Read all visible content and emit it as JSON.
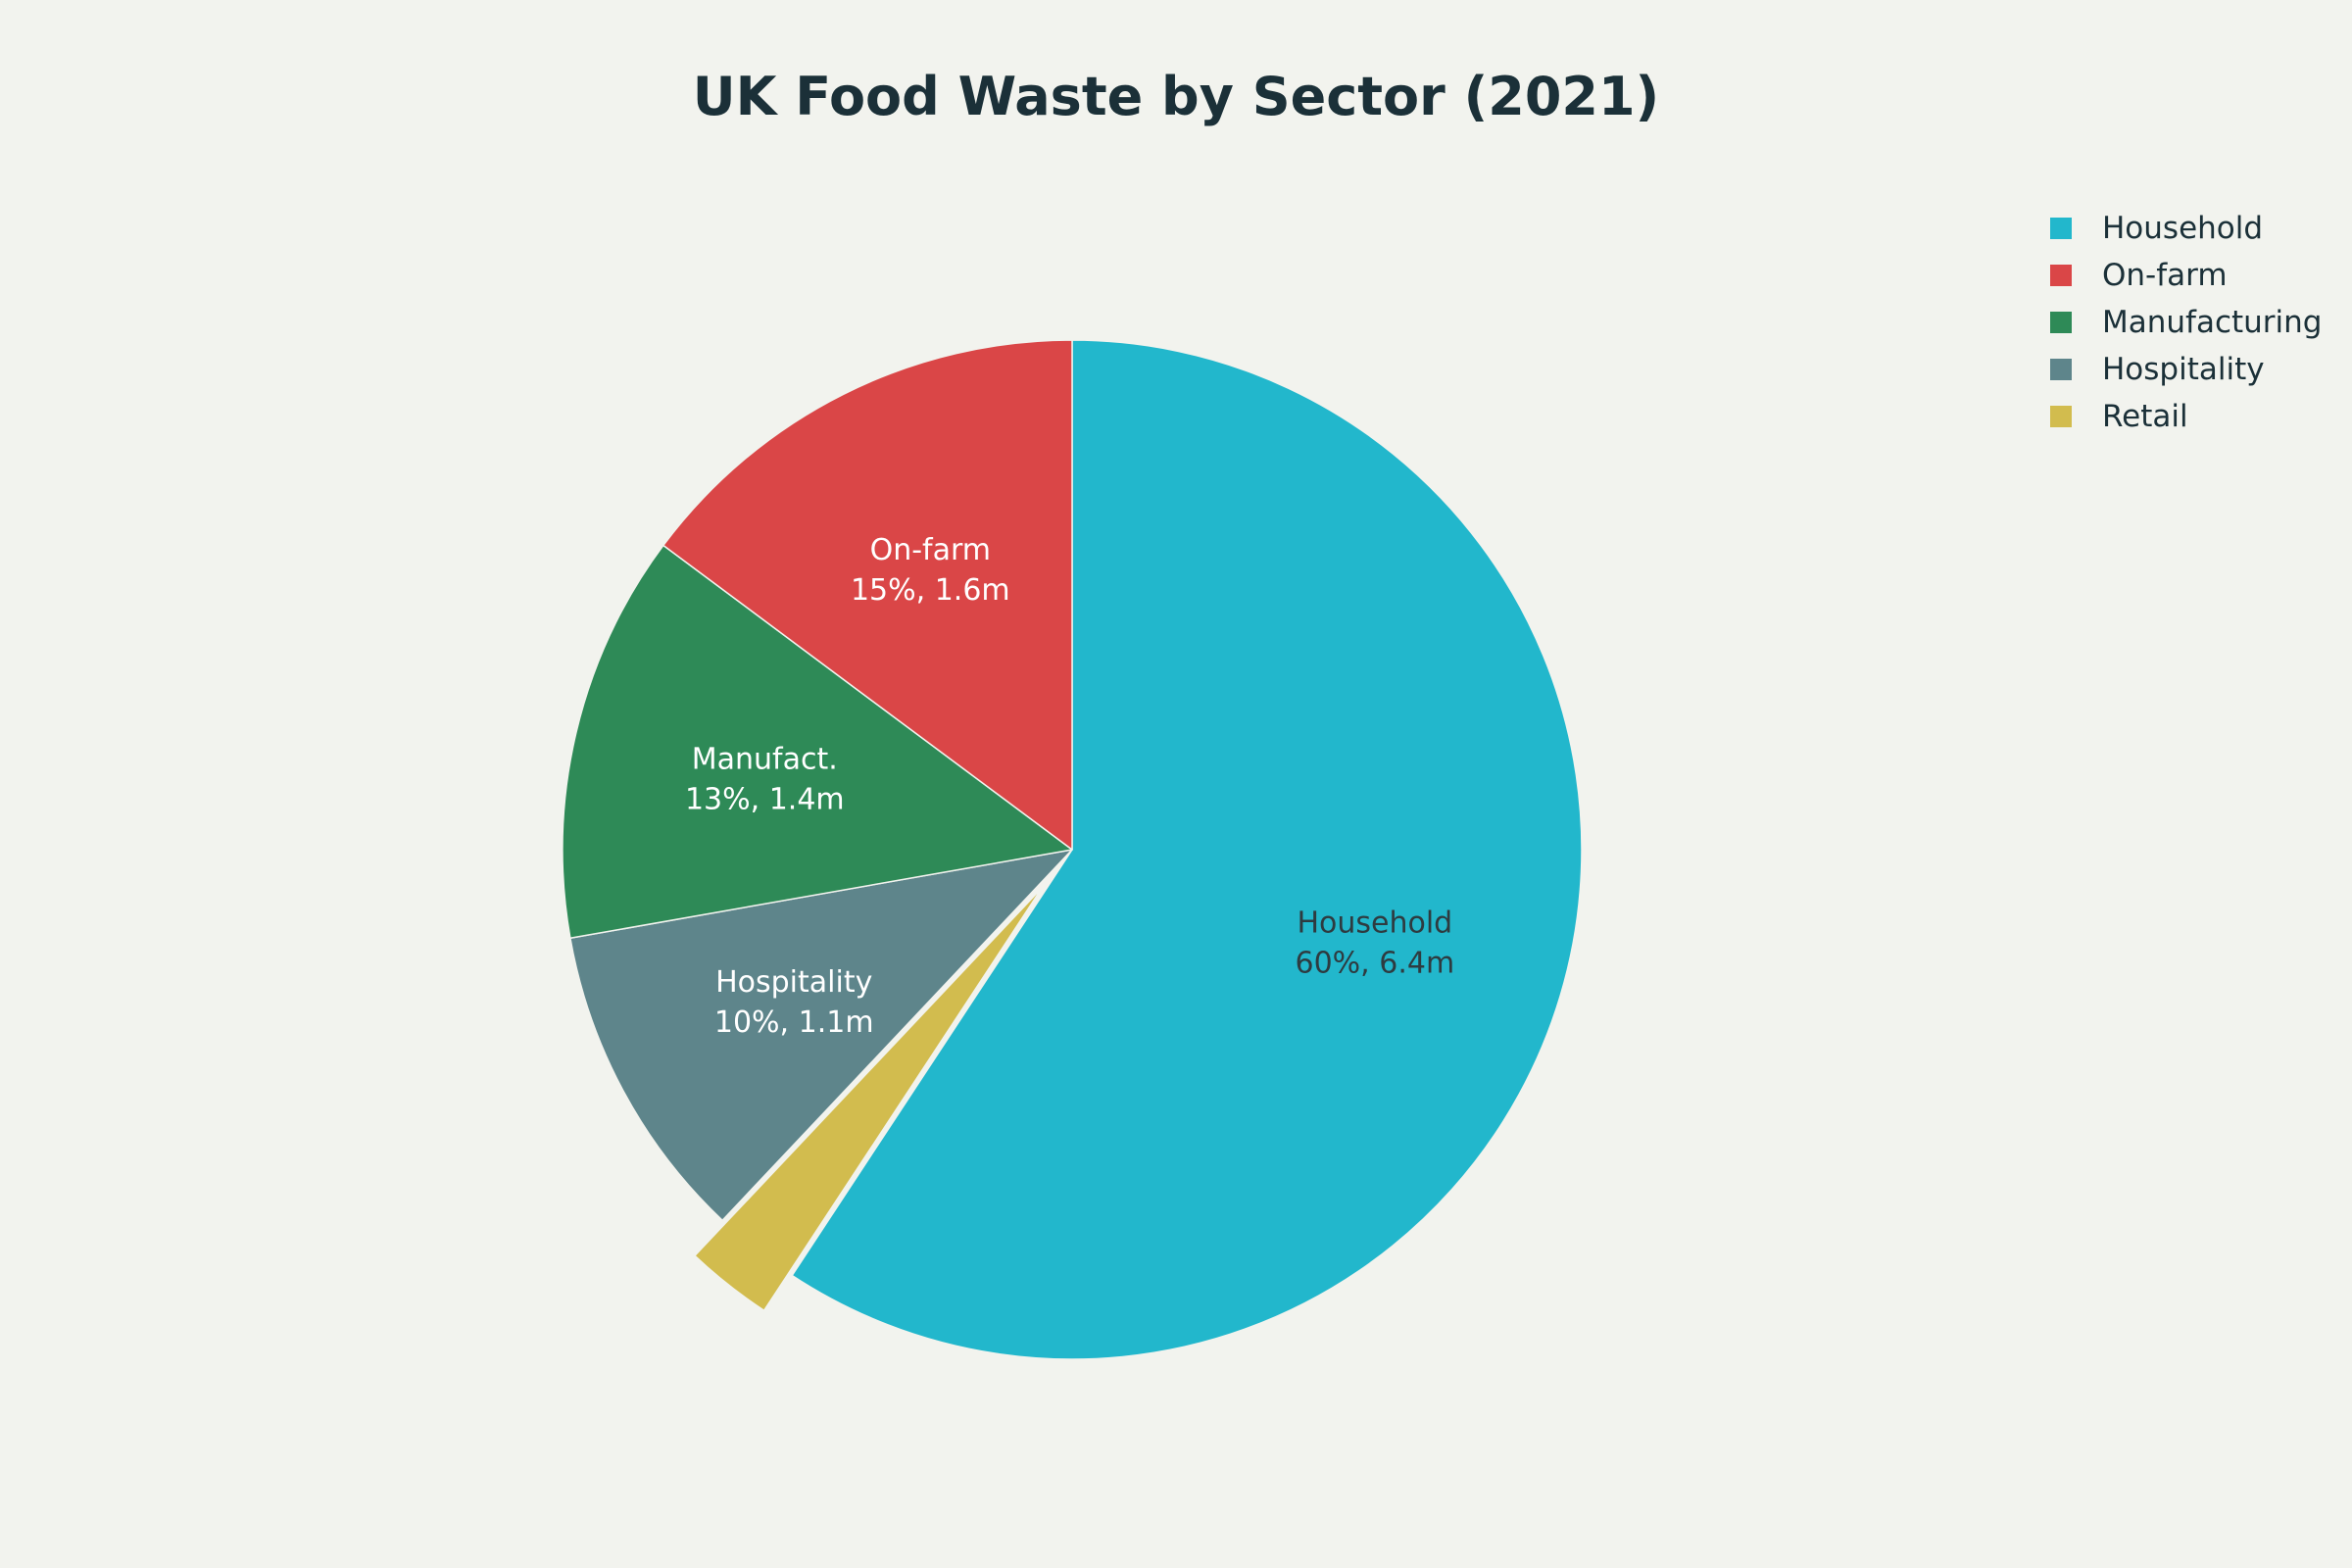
{
  "chart_data": {
    "type": "pie",
    "title": "UK Food Waste by Sector (2021)",
    "slices": [
      {
        "name": "Household",
        "label": "Household",
        "percent_text": "60%",
        "value_text": "6.4m",
        "value": 6.4,
        "color": "#22b7cc",
        "label_color": "#2e3b40"
      },
      {
        "name": "Retail",
        "label": "",
        "percent_text": "2%",
        "value_text": "0.3m",
        "value": 0.3,
        "color": "#d2bc4e",
        "label_color": "#2e3b40",
        "pulled": true
      },
      {
        "name": "Hospitality",
        "label": "Hospitality",
        "percent_text": "10%",
        "value_text": "1.1m",
        "value": 1.1,
        "color": "#5e858b",
        "label_color": "#ffffff"
      },
      {
        "name": "Manufacturing",
        "label": "Manufact.",
        "percent_text": "13%",
        "value_text": "1.4m",
        "value": 1.4,
        "color": "#2e8a57",
        "label_color": "#ffffff"
      },
      {
        "name": "On-farm",
        "label": "On-farm",
        "percent_text": "15%",
        "value_text": "1.6m",
        "value": 1.6,
        "color": "#da4647",
        "label_color": "#ffffff"
      }
    ],
    "direction": "clockwise",
    "start": "top",
    "legend": {
      "placement": "top-right",
      "entries": [
        "Household",
        "On-farm",
        "Manufacturing",
        "Hospitality",
        "Retail"
      ]
    }
  }
}
